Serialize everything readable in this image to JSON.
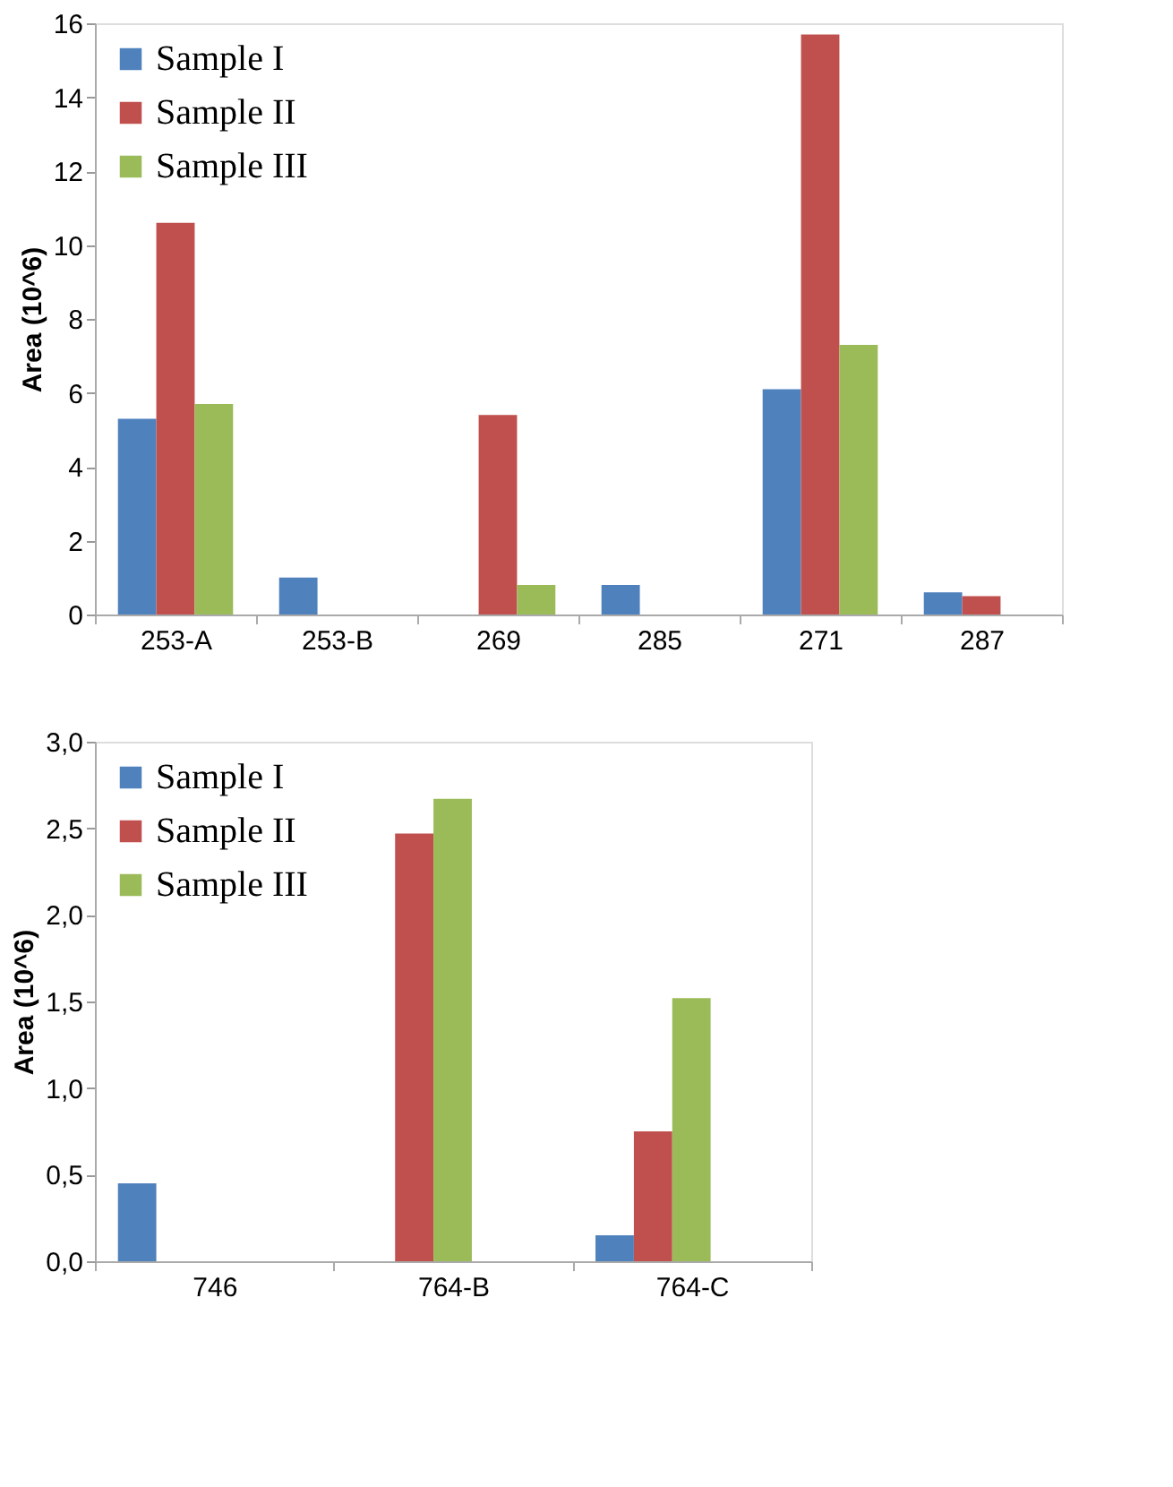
{
  "chart_data": [
    {
      "type": "bar",
      "ylabel": "Area (10^6)",
      "categories": [
        "253-A",
        "253-B",
        "269",
        "285",
        "271",
        "287"
      ],
      "ylim": [
        0,
        16
      ],
      "yticks": [
        0,
        2,
        4,
        6,
        8,
        10,
        12,
        14,
        16
      ],
      "grid": false,
      "legend": "top left",
      "series": [
        {
          "name": "Sample I",
          "color": "#4f81bd",
          "values": [
            5.3,
            1.0,
            0,
            0.8,
            6.1,
            0.6
          ]
        },
        {
          "name": "Sample II",
          "color": "#c0504d",
          "values": [
            10.6,
            0,
            5.4,
            0,
            15.7,
            0.5
          ]
        },
        {
          "name": "Sample III",
          "color": "#9bbb59",
          "values": [
            5.7,
            0,
            0.8,
            0,
            7.3,
            0
          ]
        }
      ]
    },
    {
      "type": "bar",
      "ylabel": "Area (10^6)",
      "categories": [
        "746",
        "764-B",
        "764-C"
      ],
      "ylim": [
        0,
        3
      ],
      "yticks": [
        {
          "value": 0,
          "label": "0,0"
        },
        {
          "value": 0.5,
          "label": "0,5"
        },
        {
          "value": 1,
          "label": "1,0"
        },
        {
          "value": 1.5,
          "label": "1,5"
        },
        {
          "value": 2,
          "label": "2,0"
        },
        {
          "value": 2.5,
          "label": "2,5"
        },
        {
          "value": 3,
          "label": "3,0"
        }
      ],
      "grid": false,
      "legend": "top left",
      "series": [
        {
          "name": "Sample I",
          "color": "#4f81bd",
          "values": [
            0.45,
            0,
            0.15
          ]
        },
        {
          "name": "Sample II",
          "color": "#c0504d",
          "values": [
            0,
            2.47,
            0.75
          ]
        },
        {
          "name": "Sample III",
          "color": "#9bbb59",
          "values": [
            0,
            2.67,
            1.52
          ]
        }
      ]
    }
  ]
}
